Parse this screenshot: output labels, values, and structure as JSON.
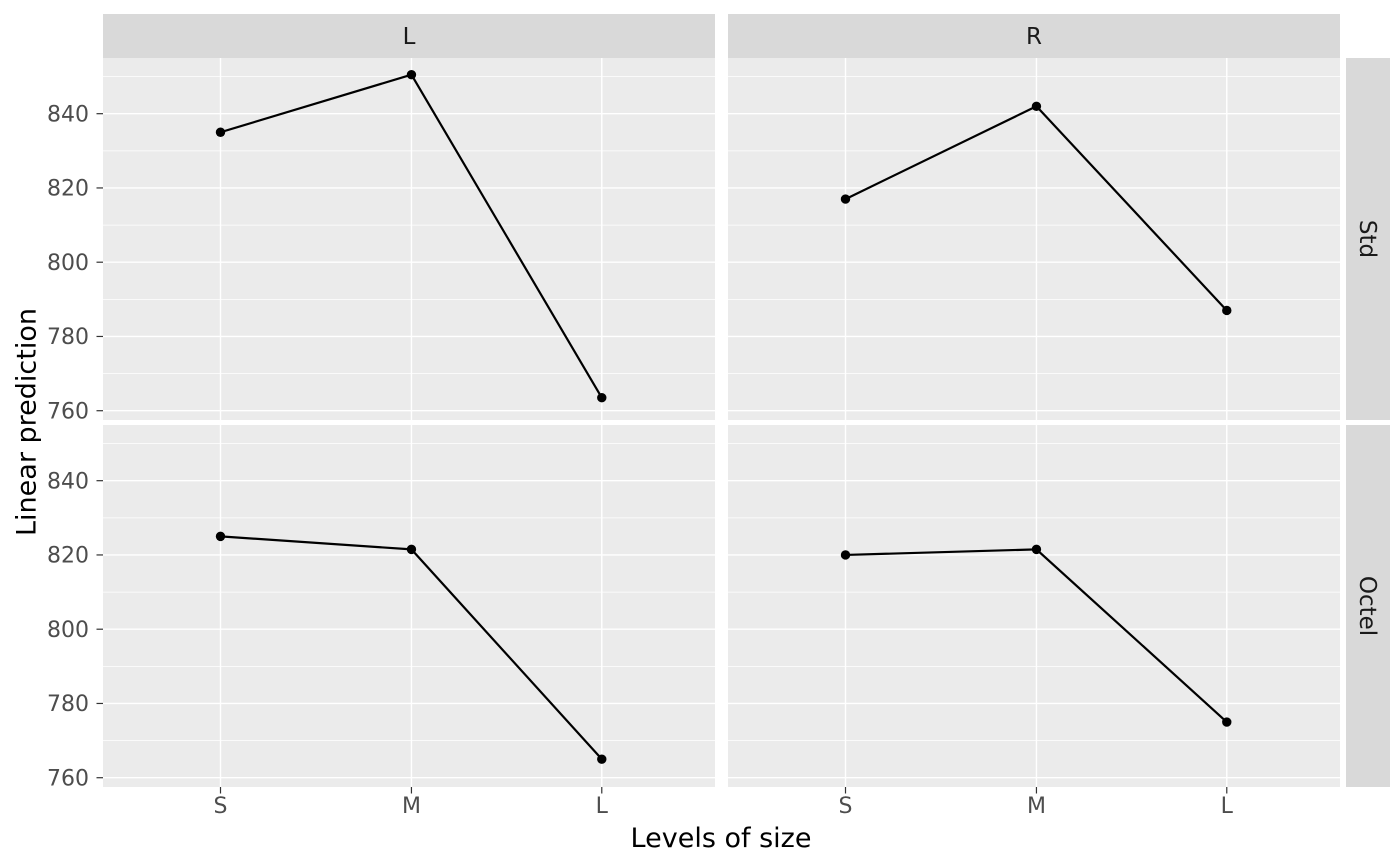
{
  "chart_data": {
    "type": "line",
    "title": "",
    "xlabel": "Levels of size",
    "ylabel": "Linear prediction",
    "categories": [
      "S",
      "M",
      "L"
    ],
    "col_facets": [
      "L",
      "R"
    ],
    "row_facets": [
      "Std",
      "Octel"
    ],
    "yticks": [
      760,
      780,
      800,
      820,
      840
    ],
    "yticks_minor": [
      770,
      790,
      810,
      830,
      850
    ],
    "ylim": [
      757.5,
      855
    ],
    "grid": true,
    "legend": "none",
    "series": [
      {
        "row_facet": "Std",
        "col_facet": "L",
        "x": [
          "S",
          "M",
          "L"
        ],
        "values": [
          835,
          850.5,
          763.5
        ]
      },
      {
        "row_facet": "Std",
        "col_facet": "R",
        "x": [
          "S",
          "M",
          "L"
        ],
        "values": [
          817,
          842,
          787
        ]
      },
      {
        "row_facet": "Octel",
        "col_facet": "L",
        "x": [
          "S",
          "M",
          "L"
        ],
        "values": [
          825,
          821.5,
          765
        ]
      },
      {
        "row_facet": "Octel",
        "col_facet": "R",
        "x": [
          "S",
          "M",
          "L"
        ],
        "values": [
          820,
          821.5,
          775
        ]
      }
    ],
    "colors": {
      "background": "#FFFFFF",
      "panel_bg": "#EBEBEB",
      "strip_bg": "#D9D9D9",
      "grid": "#FFFFFF",
      "line": "#000000",
      "point": "#000000",
      "tick_label": "#4D4D4D",
      "axis_title": "#000000",
      "strip_label": "#1A1A1A",
      "tick_mark": "#333333"
    }
  }
}
